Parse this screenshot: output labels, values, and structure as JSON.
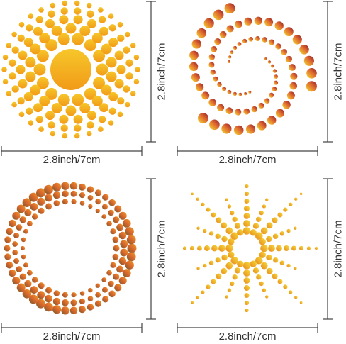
{
  "panels": [
    {
      "id": "sun-burst",
      "pattern": "sunburst-dots",
      "colors": [
        "#f7a81c",
        "#f3cf28",
        "#f0c420"
      ],
      "width_label": "2.8inch/7cm",
      "height_label": "2.8inch/7cm"
    },
    {
      "id": "spiral",
      "pattern": "spiral-dots",
      "colors": [
        "#8b1a2a",
        "#e06a30",
        "#f6df30"
      ],
      "width_label": "2.8inch/7cm",
      "height_label": "2.8inch/7cm"
    },
    {
      "id": "ring",
      "pattern": "ring-dots",
      "colors": [
        "#7a5a2a",
        "#d8662c",
        "#f0a028"
      ],
      "width_label": "2.8inch/7cm",
      "height_label": "2.8inch/7cm"
    },
    {
      "id": "star-burst",
      "pattern": "star-burst-dots",
      "colors": [
        "#e8881c",
        "#f4d23a",
        "#f2b824"
      ],
      "width_label": "2.8inch/7cm",
      "height_label": "2.8inch/7cm"
    }
  ]
}
